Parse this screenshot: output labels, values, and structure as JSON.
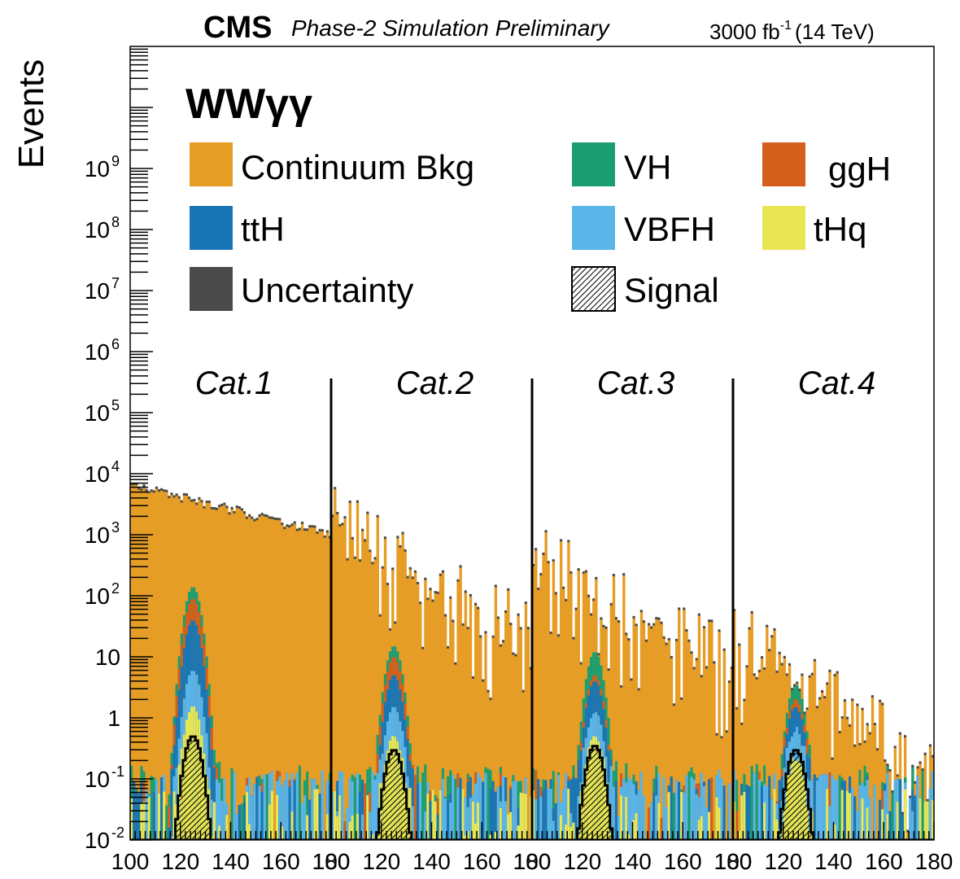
{
  "header": {
    "experiment": "CMS",
    "status": "Phase-2 Simulation Preliminary",
    "lumi_prefix": "3000 fb",
    "lumi_exponent": "-1",
    "lumi_suffix": "(14 TeV)"
  },
  "chart_data": {
    "type": "bar",
    "title": "",
    "channel_label": "WWγγ",
    "ylabel": "Events",
    "xlabel": "",
    "ylog": true,
    "ylim": [
      0.01,
      100000000000
    ],
    "y_ticks": [
      {
        "value": 0.01,
        "label": "10",
        "exp": "-2"
      },
      {
        "value": 0.1,
        "label": "10",
        "exp": "-1"
      },
      {
        "value": 1,
        "label": "1",
        "exp": ""
      },
      {
        "value": 10,
        "label": "10",
        "exp": ""
      },
      {
        "value": 100,
        "label": "10",
        "exp": "2"
      },
      {
        "value": 1000,
        "label": "10",
        "exp": "3"
      },
      {
        "value": 10000,
        "label": "10",
        "exp": "4"
      },
      {
        "value": 100000,
        "label": "10",
        "exp": "5"
      },
      {
        "value": 1000000,
        "label": "10",
        "exp": "6"
      },
      {
        "value": 10000000,
        "label": "10",
        "exp": "7"
      },
      {
        "value": 100000000,
        "label": "10",
        "exp": "8"
      },
      {
        "value": 1000000000,
        "label": "10",
        "exp": "9"
      }
    ],
    "x_tick_labels": [
      "100",
      "120",
      "140",
      "160",
      "180",
      "100",
      "120",
      "140",
      "160",
      "180",
      "100",
      "120",
      "140",
      "160",
      "180",
      "100",
      "120",
      "140",
      "160",
      "180"
    ],
    "mass_range": [
      100,
      180
    ],
    "bin_width_gev": 1,
    "legend": [
      {
        "name": "Continuum Bkg",
        "color": "#e69d26",
        "kind": "fill"
      },
      {
        "name": "VH",
        "color": "#1a9e71",
        "kind": "fill"
      },
      {
        "name": "ggH",
        "color": "#d45f1c",
        "kind": "fill"
      },
      {
        "name": "ttH",
        "color": "#1876b6",
        "kind": "fill"
      },
      {
        "name": "VBFH",
        "color": "#5bb5e8",
        "kind": "fill"
      },
      {
        "name": "tHq",
        "color": "#e8e653",
        "kind": "fill"
      },
      {
        "name": "Uncertainty",
        "color": "#4a4a4a",
        "kind": "fill"
      },
      {
        "name": "Signal",
        "color": "#000000",
        "kind": "hatch"
      }
    ],
    "legend_placement": "top",
    "categories": [
      {
        "name": "Cat.1",
        "continuum_bkg": {
          "value_at_100": 6500,
          "value_at_180": 1000,
          "fluctuation": "low"
        },
        "higgs_peak_gev": 125,
        "peak_totals": {
          "tHq": 1.5,
          "VBFH": 6,
          "ttH": 40,
          "ggH": 90,
          "VH": 140
        },
        "signal_peak": 0.5
      },
      {
        "name": "Cat.2",
        "continuum_bkg": {
          "value_at_100": 1300,
          "value_at_180": 15,
          "fluctuation": "high"
        },
        "higgs_peak_gev": 125,
        "peak_totals": {
          "tHq": 0.5,
          "VBFH": 1.5,
          "ttH": 5,
          "ggH": 10,
          "VH": 15
        },
        "signal_peak": 0.3
      },
      {
        "name": "Cat.3",
        "continuum_bkg": {
          "value_at_100": 350,
          "value_at_180": 5,
          "fluctuation": "high"
        },
        "higgs_peak_gev": 125,
        "peak_totals": {
          "tHq": 0.5,
          "VBFH": 1.2,
          "ttH": 4,
          "ggH": 5,
          "VH": 12
        },
        "signal_peak": 0.35
      },
      {
        "name": "Cat.4",
        "continuum_bkg": {
          "value_at_100": 20,
          "value_at_180": 0.1,
          "fluctuation": "high"
        },
        "higgs_peak_gev": 125,
        "peak_totals": {
          "tHq": 0.2,
          "VBFH": 0.6,
          "ttH": 1.5,
          "ggH": 2,
          "VH": 3.5
        },
        "signal_peak": 0.3
      }
    ]
  }
}
